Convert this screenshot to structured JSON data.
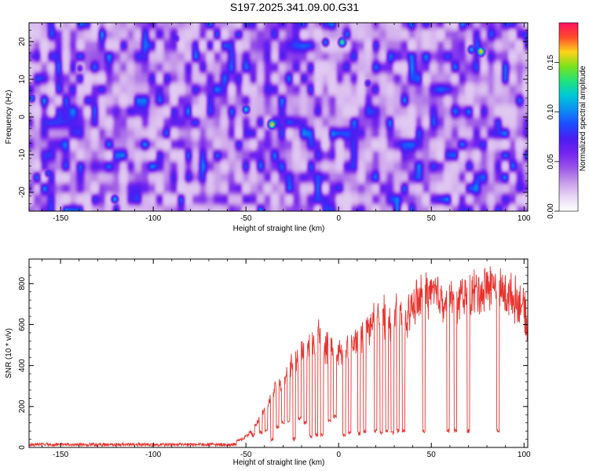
{
  "title": "S197.2025.341.09.00.G31",
  "colors": {
    "snr_line": "#e8332e",
    "axis": "#000000",
    "spectrogram_scale": [
      "#ffffff",
      "#e9d8f4",
      "#c79bea",
      "#9a55e8",
      "#7424f0",
      "#4a1df2",
      "#1d4cff",
      "#0b8ff2",
      "#00c9d6",
      "#21e27a",
      "#7ce21a",
      "#ffd21a",
      "#ff4b2a",
      "#ff1060"
    ]
  },
  "chart_data": [
    {
      "type": "heatmap",
      "name": "spectrogram",
      "xlabel": "Height of straight line (km)",
      "ylabel": "Frequency (Hz)",
      "xlim": [
        -167,
        102
      ],
      "ylim": [
        -25,
        25
      ],
      "xticks": [
        -150,
        -100,
        -50,
        0,
        50,
        100
      ],
      "xtick_labels": [
        "-150",
        "-100",
        "-50",
        "0",
        "50",
        "100"
      ],
      "yticks": [
        -20,
        -10,
        0,
        10,
        20
      ],
      "ytick_labels": [
        "-20",
        "-10",
        "0",
        "10",
        "20"
      ],
      "colorbar": {
        "label": "Normalized spectral amplitude",
        "range": [
          0,
          0.19
        ],
        "ticks": [
          0,
          0.05,
          0.1,
          0.15
        ],
        "tick_labels": [
          "0.00",
          "0.05",
          "0.10",
          "0.15"
        ]
      },
      "noise_level": 0.045,
      "hotspots": [
        {
          "x": -36,
          "y": -2,
          "v": 0.17
        },
        {
          "x": 2,
          "y": 20,
          "v": 0.14
        },
        {
          "x": 77,
          "y": 17.5,
          "v": 0.17
        },
        {
          "x": 72,
          "y": 18,
          "v": 0.11
        },
        {
          "x": -50,
          "y": 2,
          "v": 0.12
        },
        {
          "x": -121,
          "y": -22,
          "v": 0.11
        },
        {
          "x": -7,
          "y": 20,
          "v": 0.1
        },
        {
          "x": -166,
          "y": 5,
          "v": 0.1
        },
        {
          "x": -157,
          "y": -15,
          "v": 0.09
        },
        {
          "x": -88,
          "y": 21,
          "v": 0.08
        },
        {
          "x": 16,
          "y": 9,
          "v": 0.08
        },
        {
          "x": -140,
          "y": 13,
          "v": 0.07
        }
      ]
    },
    {
      "type": "line",
      "name": "snr",
      "xlabel": "Height of straight line (km)",
      "ylabel": "SNR (10 * v/v)",
      "xlim": [
        -167,
        102
      ],
      "ylim": [
        0,
        920
      ],
      "xticks": [
        -150,
        -100,
        -50,
        0,
        50,
        100
      ],
      "xtick_labels": [
        "-150",
        "-100",
        "-50",
        "0",
        "50",
        "100"
      ],
      "yticks": [
        0,
        200,
        400,
        600,
        800
      ],
      "ytick_labels": [
        "0",
        "200",
        "400",
        "600",
        "800"
      ],
      "x": [
        -167,
        -140,
        -110,
        -90,
        -70,
        -60,
        -52,
        -46,
        -42,
        -38,
        -34,
        -30,
        -26,
        -22,
        -18,
        -14,
        -11,
        -7,
        -4,
        0,
        4,
        8,
        12,
        16,
        20,
        24,
        28,
        32,
        36,
        40,
        44,
        48,
        52,
        56,
        60,
        64,
        68,
        72,
        76,
        80,
        84,
        88,
        92,
        96,
        100,
        102
      ],
      "y": [
        20,
        22,
        18,
        18,
        16,
        20,
        40,
        85,
        150,
        220,
        290,
        330,
        385,
        440,
        480,
        500,
        560,
        490,
        490,
        450,
        470,
        510,
        540,
        590,
        630,
        640,
        620,
        650,
        620,
        690,
        730,
        760,
        750,
        730,
        740,
        720,
        740,
        750,
        760,
        780,
        800,
        760,
        740,
        720,
        680,
        560
      ],
      "drop_markers": [
        [
          -46,
          60
        ],
        [
          -42,
          75
        ],
        [
          -39,
          80
        ],
        [
          -36,
          40
        ],
        [
          -33,
          100
        ],
        [
          -30,
          120
        ],
        [
          -27,
          130
        ],
        [
          -24,
          40
        ],
        [
          -21,
          140
        ],
        [
          -18,
          120
        ],
        [
          -15,
          50
        ],
        [
          -12,
          60
        ],
        [
          -9,
          60
        ],
        [
          -5,
          130
        ],
        [
          -2,
          150
        ],
        [
          3,
          60
        ],
        [
          6,
          70
        ],
        [
          11,
          70
        ],
        [
          14,
          80
        ],
        [
          20,
          80
        ],
        [
          23,
          70
        ],
        [
          26,
          80
        ],
        [
          29,
          70
        ],
        [
          32,
          80
        ],
        [
          35,
          80
        ],
        [
          46,
          80
        ],
        [
          59,
          80
        ],
        [
          63,
          80
        ],
        [
          70,
          80
        ],
        [
          86,
          80
        ]
      ]
    }
  ]
}
